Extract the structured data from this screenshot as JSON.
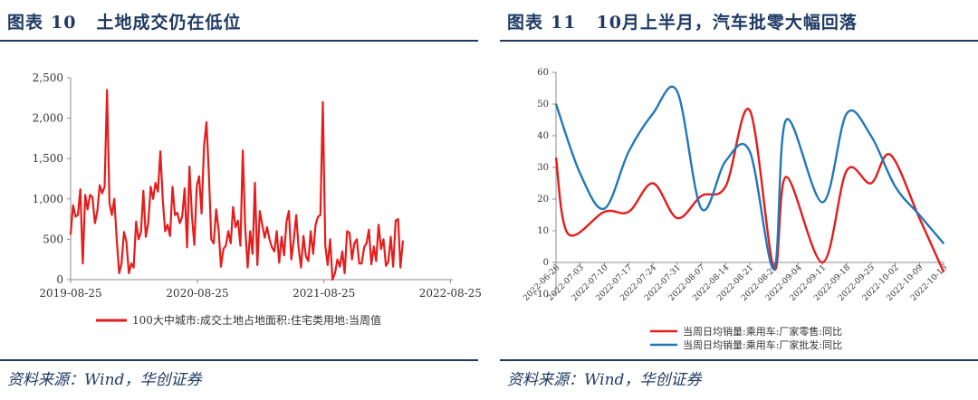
{
  "left": {
    "fig_label": "图表",
    "fig_num": "10",
    "title_text": "土地成交仍在低位",
    "source": "资料来源：Wind，华创证券"
  },
  "right": {
    "fig_label": "图表",
    "fig_num": "11",
    "title_text": "10月上半月，汽车批零大幅回落",
    "source": "资料来源：Wind，华创证券"
  },
  "colors": {
    "red": "#e51c1c",
    "blue": "#2178b8",
    "navy": "#1f3a64"
  },
  "chart_data": [
    {
      "type": "line",
      "title": "",
      "ylim": [
        0,
        2500
      ],
      "yticks": [
        "0",
        "500",
        "1,000",
        "1,500",
        "2,000",
        "2,500"
      ],
      "yticks_values": [
        0,
        500,
        1000,
        1500,
        2000,
        2500
      ],
      "xlim": [
        "2019-08-25",
        "2022-09-01"
      ],
      "xticks": [
        "2019-08-25",
        "2020-08-25",
        "2021-08-25",
        "2022-08-25"
      ],
      "grid": false,
      "legend_position": "bottom",
      "series": [
        {
          "name": "100大中城市:成交土地占地面积:住宅类用地:当周值",
          "color": "red",
          "values": [
            560,
            920,
            780,
            800,
            1120,
            200,
            1050,
            870,
            1050,
            1020,
            700,
            850,
            1170,
            1070,
            1150,
            2350,
            950,
            800,
            1000,
            500,
            80,
            200,
            590,
            470,
            80,
            200,
            150,
            720,
            500,
            590,
            1100,
            530,
            700,
            1150,
            1000,
            1200,
            1090,
            1590,
            980,
            600,
            680,
            540,
            1150,
            800,
            830,
            700,
            780,
            1130,
            400,
            1400,
            800,
            430,
            1160,
            1280,
            820,
            1650,
            1950,
            1300,
            500,
            450,
            870,
            620,
            160,
            380,
            420,
            600,
            450,
            900,
            650,
            730,
            420,
            1600,
            640,
            150,
            600,
            320,
            1200,
            180,
            850,
            680,
            520,
            650,
            500,
            400,
            350,
            600,
            210,
            530,
            300,
            720,
            850,
            250,
            490,
            800,
            400,
            150,
            540,
            290,
            230,
            600,
            320,
            680,
            780,
            800,
            2200,
            420,
            180,
            500,
            0,
            80,
            250,
            160,
            350,
            80,
            600,
            580,
            250,
            450,
            500,
            200,
            200,
            400,
            450,
            620,
            190,
            410,
            230,
            680,
            380,
            500,
            170,
            220,
            530,
            160,
            730,
            750,
            150,
            480
          ]
        }
      ]
    },
    {
      "type": "line",
      "title": "",
      "ylim": [
        -10,
        60
      ],
      "yticks": [
        "-10",
        "0",
        "10",
        "20",
        "30",
        "40",
        "50",
        "60"
      ],
      "yticks_values": [
        -10,
        0,
        10,
        20,
        30,
        40,
        50,
        60
      ],
      "categories": [
        "2022-06-26",
        "2022-07-03",
        "2022-07-10",
        "2022-07-17",
        "2022-07-24",
        "2022-07-31",
        "2022-08-07",
        "2022-08-14",
        "2022-08-21",
        "2022-08-28",
        "2022-09-04",
        "2022-09-11",
        "2022-09-18",
        "2022-09-25",
        "2022-10-02",
        "2022-10-09",
        "2022-10-16"
      ],
      "grid": false,
      "legend_position": "bottom",
      "series": [
        {
          "name": "当周日均销量:乘用车:厂家零售:同比",
          "color": "red",
          "points": [
            [
              0,
              33
            ],
            [
              0.5,
              9
            ],
            [
              2,
              16
            ],
            [
              3,
              16
            ],
            [
              4,
              25
            ],
            [
              5,
              14
            ],
            [
              6,
              21
            ],
            [
              7,
              24
            ],
            [
              8,
              48
            ],
            [
              9,
              -2
            ],
            [
              9.5,
              27
            ],
            [
              11,
              0
            ],
            [
              12,
              29
            ],
            [
              13,
              25
            ],
            [
              13.8,
              34
            ],
            [
              15,
              14
            ],
            [
              16,
              -3
            ]
          ]
        },
        {
          "name": "当周日均销量:乘用车:厂家批发:同比",
          "color": "blue",
          "points": [
            [
              0,
              50
            ],
            [
              1,
              28
            ],
            [
              2,
              17
            ],
            [
              3,
              35
            ],
            [
              4,
              47
            ],
            [
              5,
              54
            ],
            [
              6,
              17
            ],
            [
              7,
              32
            ],
            [
              8,
              35
            ],
            [
              9,
              -2
            ],
            [
              9.5,
              45
            ],
            [
              11,
              19
            ],
            [
              12,
              47
            ],
            [
              13,
              40
            ],
            [
              14,
              24
            ],
            [
              15,
              15
            ],
            [
              16,
              6
            ]
          ]
        }
      ]
    }
  ]
}
